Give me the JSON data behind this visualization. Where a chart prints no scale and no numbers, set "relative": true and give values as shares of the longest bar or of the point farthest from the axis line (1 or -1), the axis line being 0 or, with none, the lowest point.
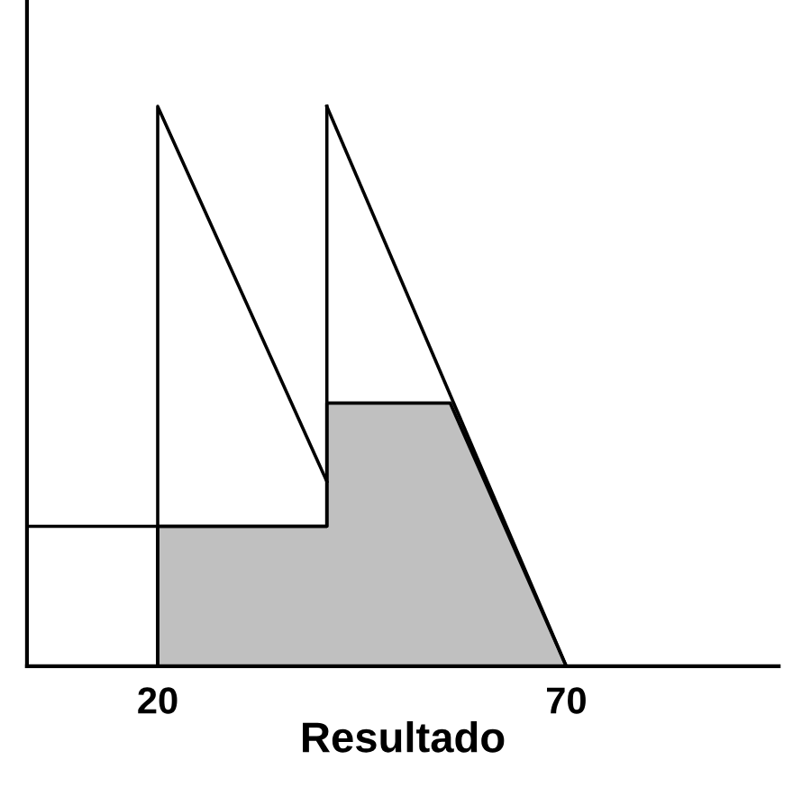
{
  "chart_data": {
    "type": "line",
    "xlabel": "Resultado",
    "relative": true,
    "xlim": [
      4,
      96
    ],
    "xticks": [
      20,
      70
    ],
    "tick_labels": "x",
    "grid": false,
    "legend": false,
    "marker": "none",
    "line_style": "solid",
    "series": [
      {
        "type": "area",
        "color": "#c0c0c0",
        "x": [
          20,
          20,
          40.7,
          40.7,
          55.8,
          70
        ],
        "values": [
          0,
          0.25,
          0.25,
          0.47,
          0.47,
          0
        ]
      },
      {
        "color": "#000000",
        "x": [
          4,
          40.7,
          40.7
        ],
        "values": [
          0.25,
          0.25,
          1
        ]
      },
      {
        "color": "#000000",
        "x": [
          20,
          20,
          40.7
        ],
        "values": [
          0,
          1,
          0.33
        ]
      },
      {
        "color": "#000000",
        "x": [
          40.7,
          70
        ],
        "values": [
          1,
          0
        ]
      }
    ]
  }
}
